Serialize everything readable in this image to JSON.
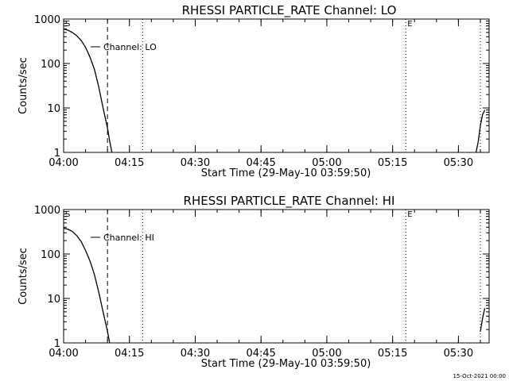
{
  "footer": "15-Oct-2021 00:00",
  "chart_data": [
    {
      "type": "line",
      "title": "RHESSI PARTICLE_RATE Channel: LO",
      "xlabel": "Start Time (29-May-10 03:59:50)",
      "ylabel": "Counts/sec",
      "yscale": "log",
      "ylim": [
        1,
        1000
      ],
      "xlim": [
        "04:00",
        "05:37"
      ],
      "x_ticks": [
        "04:00",
        "04:15",
        "04:30",
        "04:45",
        "05:00",
        "05:15",
        "05:30"
      ],
      "y_ticks": [
        "1",
        "10",
        "100",
        "1000"
      ],
      "grid": false,
      "legend_label": "Channel: LO",
      "markers": [
        {
          "label": "S",
          "time": "04:00",
          "style": "none"
        },
        {
          "label": "",
          "time": "04:10",
          "style": "dashed"
        },
        {
          "label": "",
          "time": "04:18",
          "style": "dotted"
        },
        {
          "label": "E",
          "time": "05:18",
          "style": "dotted"
        },
        {
          "label": "",
          "time": "05:35",
          "style": "dotted"
        }
      ],
      "series": [
        {
          "segments": [
            [
              [
                "04:00",
                600
              ],
              [
                "04:01",
                560
              ],
              [
                "04:02",
                500
              ],
              [
                "04:03",
                420
              ],
              [
                "04:04",
                330
              ],
              [
                "04:05",
                230
              ],
              [
                "04:06",
                140
              ],
              [
                "04:07",
                75
              ],
              [
                "04:08",
                30
              ],
              [
                "04:09",
                10
              ],
              [
                "04:10",
                3.5
              ],
              [
                "04:10.5",
                1.8
              ],
              [
                "04:11",
                1
              ]
            ],
            [
              [
                "05:34",
                1
              ],
              [
                "05:34.5",
                1.7
              ],
              [
                "05:35",
                4
              ],
              [
                "05:35.5",
                7
              ],
              [
                "05:36",
                9
              ]
            ]
          ]
        }
      ]
    },
    {
      "type": "line",
      "title": "RHESSI PARTICLE_RATE Channel: HI",
      "xlabel": "Start Time (29-May-10 03:59:50)",
      "ylabel": "Counts/sec",
      "yscale": "log",
      "ylim": [
        1,
        1000
      ],
      "xlim": [
        "04:00",
        "05:37"
      ],
      "x_ticks": [
        "04:00",
        "04:15",
        "04:30",
        "04:45",
        "05:00",
        "05:15",
        "05:30"
      ],
      "y_ticks": [
        "1",
        "10",
        "100",
        "1000"
      ],
      "grid": false,
      "legend_label": "Channel: HI",
      "markers": [
        {
          "label": "S",
          "time": "04:00",
          "style": "none"
        },
        {
          "label": "",
          "time": "04:10",
          "style": "dashed"
        },
        {
          "label": "",
          "time": "04:18",
          "style": "dotted"
        },
        {
          "label": "E",
          "time": "05:18",
          "style": "dotted"
        },
        {
          "label": "",
          "time": "05:35",
          "style": "dotted"
        }
      ],
      "series": [
        {
          "segments": [
            [
              [
                "04:00",
                380
              ],
              [
                "04:01",
                360
              ],
              [
                "04:02",
                320
              ],
              [
                "04:03",
                260
              ],
              [
                "04:04",
                190
              ],
              [
                "04:05",
                120
              ],
              [
                "04:06",
                70
              ],
              [
                "04:07",
                35
              ],
              [
                "04:08",
                14
              ],
              [
                "04:09",
                5
              ],
              [
                "04:10",
                1.8
              ],
              [
                "04:10.5",
                1
              ]
            ],
            [
              [
                "05:35",
                1.8
              ],
              [
                "05:35.5",
                3.5
              ],
              [
                "05:36",
                6
              ]
            ]
          ]
        }
      ]
    }
  ]
}
